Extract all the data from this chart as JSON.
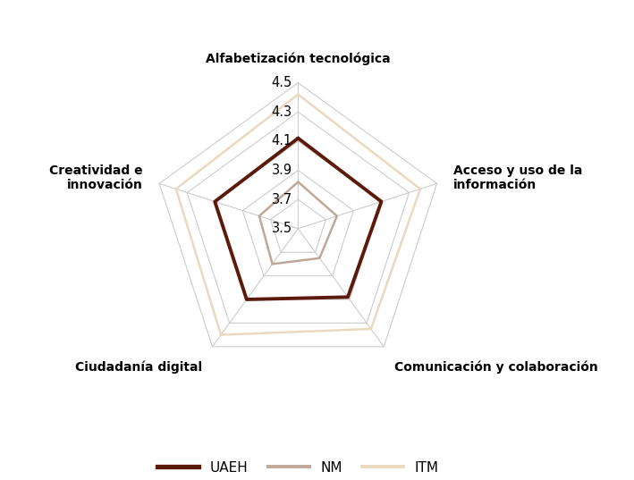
{
  "categories": [
    "Alfabetización\ntecnológica",
    "Acceso y uso de la\ninformación",
    "Comunicación y colaboración",
    "Ciudadanía digital",
    "Creatividad e\ninnovación"
  ],
  "cat_labels": [
    "Alfabetización tecnológica",
    "Acceso y uso de la\ninformación",
    "Comunicación y colaboración",
    "Ciudadanía digital",
    "Creatividad e\ninnovación"
  ],
  "series": [
    {
      "name": "UAEH",
      "values": [
        4.12,
        4.1,
        4.08,
        4.1,
        4.1
      ],
      "color": "#5C1A0A",
      "linewidth": 2.8
    },
    {
      "name": "NM",
      "values": [
        3.82,
        3.78,
        3.75,
        3.8,
        3.78
      ],
      "color": "#C0A898",
      "linewidth": 1.8
    },
    {
      "name": "ITM",
      "values": [
        4.42,
        4.38,
        4.35,
        4.4,
        4.38
      ],
      "color": "#EAD9BE",
      "linewidth": 1.8
    }
  ],
  "r_min": 3.5,
  "r_max": 4.5,
  "r_ticks": [
    3.5,
    3.7,
    3.9,
    4.1,
    4.3,
    4.5
  ],
  "grid_color": "#CCCCCC",
  "background_color": "#FFFFFF",
  "label_fontsize": 10,
  "tick_fontsize": 10.5
}
